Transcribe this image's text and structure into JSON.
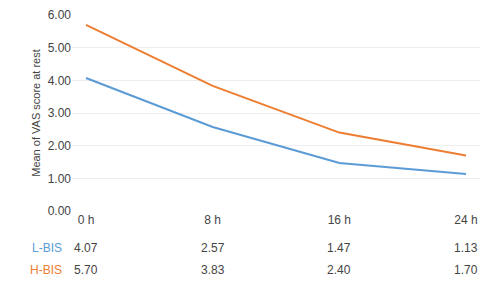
{
  "chart_data": {
    "type": "line",
    "categories": [
      "0 h",
      "8 h",
      "16 h",
      "24 h"
    ],
    "series": [
      {
        "name": "L-BIS",
        "color": "#5B9BD5",
        "values": [
          4.07,
          2.57,
          1.47,
          1.13
        ],
        "value_labels": [
          "4.07",
          "2.57",
          "1.47",
          "1.13"
        ]
      },
      {
        "name": "H-BIS",
        "color": "#ED7D31",
        "values": [
          5.7,
          3.83,
          2.4,
          1.7
        ],
        "value_labels": [
          "5.70",
          "3.83",
          "2.40",
          "1.70"
        ]
      }
    ],
    "ylabel": "Mean of VAS score at rest",
    "ylim": [
      0.0,
      6.0
    ],
    "yticks": [
      {
        "value": 0,
        "label": "0.00"
      },
      {
        "value": 1,
        "label": "1.00"
      },
      {
        "value": 2,
        "label": "2.00"
      },
      {
        "value": 3,
        "label": "3.00"
      },
      {
        "value": 4,
        "label": "4.00"
      },
      {
        "value": 5,
        "label": "5.00"
      },
      {
        "value": 6,
        "label": "6.00"
      }
    ],
    "grid": true,
    "data_labels": true
  }
}
